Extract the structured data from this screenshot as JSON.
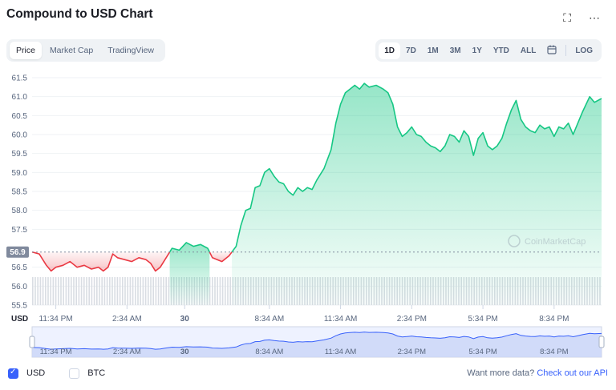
{
  "header": {
    "title": "Compound to USD Chart",
    "fullscreen_icon": "fullscreen-icon",
    "more_icon": "more-horizontal-icon"
  },
  "tabs": [
    {
      "label": "Price",
      "active": true
    },
    {
      "label": "Market Cap",
      "active": false
    },
    {
      "label": "TradingView",
      "active": false
    }
  ],
  "ranges": [
    {
      "label": "1D",
      "active": true
    },
    {
      "label": "7D",
      "active": false
    },
    {
      "label": "1M",
      "active": false
    },
    {
      "label": "3M",
      "active": false
    },
    {
      "label": "1Y",
      "active": false
    },
    {
      "label": "YTD",
      "active": false
    },
    {
      "label": "ALL",
      "active": false
    }
  ],
  "calendar_icon": "calendar-icon",
  "log_label": "LOG",
  "chart_data": {
    "type": "area",
    "currency_label": "USD",
    "watermark": "CoinMarketCap",
    "reference_value": 56.9,
    "reference_label": "56.9",
    "ylim": [
      55.5,
      61.5
    ],
    "yticks": [
      61.5,
      61.0,
      60.5,
      60.0,
      59.5,
      59.0,
      58.5,
      58.0,
      57.5,
      56.5,
      56.0,
      55.5
    ],
    "ytick_labels": [
      "61.5",
      "61.0",
      "60.5",
      "60.0",
      "59.5",
      "59.0",
      "58.5",
      "58.0",
      "57.5",
      "56.5",
      "56.0",
      "55.5"
    ],
    "xlim": [
      0,
      24
    ],
    "xticks": [
      {
        "x": 1.0,
        "label": "11:34 PM"
      },
      {
        "x": 4.0,
        "label": "2:34 AM"
      },
      {
        "x": 6.43,
        "label": "30"
      },
      {
        "x": 10.0,
        "label": "8:34 AM"
      },
      {
        "x": 13.0,
        "label": "11:34 AM"
      },
      {
        "x": 16.0,
        "label": "2:34 PM"
      },
      {
        "x": 19.0,
        "label": "5:34 PM"
      },
      {
        "x": 22.0,
        "label": "8:34 PM"
      }
    ],
    "colors": {
      "up": "#16c784",
      "down": "#ea3943",
      "nav": "#3861fb",
      "volume": "#d9dde3"
    },
    "price": [
      [
        0.0,
        56.9
      ],
      [
        0.3,
        56.85
      ],
      [
        0.6,
        56.55
      ],
      [
        0.8,
        56.4
      ],
      [
        1.0,
        56.5
      ],
      [
        1.3,
        56.55
      ],
      [
        1.6,
        56.65
      ],
      [
        1.9,
        56.5
      ],
      [
        2.2,
        56.55
      ],
      [
        2.5,
        56.45
      ],
      [
        2.8,
        56.5
      ],
      [
        3.0,
        56.4
      ],
      [
        3.2,
        56.5
      ],
      [
        3.4,
        56.85
      ],
      [
        3.6,
        56.75
      ],
      [
        3.9,
        56.7
      ],
      [
        4.2,
        56.65
      ],
      [
        4.5,
        56.75
      ],
      [
        4.8,
        56.7
      ],
      [
        5.0,
        56.6
      ],
      [
        5.2,
        56.4
      ],
      [
        5.4,
        56.5
      ],
      [
        5.6,
        56.7
      ],
      [
        5.9,
        57.0
      ],
      [
        6.2,
        56.95
      ],
      [
        6.5,
        57.15
      ],
      [
        6.8,
        57.05
      ],
      [
        7.1,
        57.1
      ],
      [
        7.4,
        57.0
      ],
      [
        7.6,
        56.75
      ],
      [
        7.8,
        56.7
      ],
      [
        8.0,
        56.65
      ],
      [
        8.3,
        56.8
      ],
      [
        8.6,
        57.05
      ],
      [
        8.8,
        57.6
      ],
      [
        9.0,
        58.0
      ],
      [
        9.2,
        58.05
      ],
      [
        9.4,
        58.6
      ],
      [
        9.6,
        58.65
      ],
      [
        9.8,
        59.0
      ],
      [
        10.0,
        59.1
      ],
      [
        10.2,
        58.9
      ],
      [
        10.4,
        58.75
      ],
      [
        10.6,
        58.7
      ],
      [
        10.8,
        58.5
      ],
      [
        11.0,
        58.4
      ],
      [
        11.2,
        58.6
      ],
      [
        11.4,
        58.5
      ],
      [
        11.6,
        58.6
      ],
      [
        11.8,
        58.55
      ],
      [
        12.0,
        58.8
      ],
      [
        12.3,
        59.1
      ],
      [
        12.6,
        59.6
      ],
      [
        12.8,
        60.3
      ],
      [
        13.0,
        60.8
      ],
      [
        13.2,
        61.1
      ],
      [
        13.4,
        61.2
      ],
      [
        13.6,
        61.3
      ],
      [
        13.8,
        61.2
      ],
      [
        14.0,
        61.35
      ],
      [
        14.2,
        61.25
      ],
      [
        14.5,
        61.3
      ],
      [
        14.8,
        61.2
      ],
      [
        15.0,
        61.1
      ],
      [
        15.2,
        60.8
      ],
      [
        15.4,
        60.2
      ],
      [
        15.6,
        59.95
      ],
      [
        15.8,
        60.05
      ],
      [
        16.0,
        60.2
      ],
      [
        16.2,
        60.0
      ],
      [
        16.4,
        59.95
      ],
      [
        16.6,
        59.8
      ],
      [
        16.8,
        59.7
      ],
      [
        17.0,
        59.65
      ],
      [
        17.2,
        59.55
      ],
      [
        17.4,
        59.7
      ],
      [
        17.6,
        60.0
      ],
      [
        17.8,
        59.95
      ],
      [
        18.0,
        59.8
      ],
      [
        18.2,
        60.1
      ],
      [
        18.4,
        59.95
      ],
      [
        18.6,
        59.45
      ],
      [
        18.8,
        59.9
      ],
      [
        19.0,
        60.05
      ],
      [
        19.2,
        59.7
      ],
      [
        19.4,
        59.6
      ],
      [
        19.6,
        59.7
      ],
      [
        19.8,
        59.9
      ],
      [
        20.0,
        60.3
      ],
      [
        20.2,
        60.65
      ],
      [
        20.4,
        60.9
      ],
      [
        20.6,
        60.4
      ],
      [
        20.8,
        60.2
      ],
      [
        21.0,
        60.1
      ],
      [
        21.2,
        60.05
      ],
      [
        21.4,
        60.25
      ],
      [
        21.6,
        60.15
      ],
      [
        21.8,
        60.2
      ],
      [
        22.0,
        59.95
      ],
      [
        22.2,
        60.2
      ],
      [
        22.4,
        60.15
      ],
      [
        22.6,
        60.3
      ],
      [
        22.8,
        60.0
      ],
      [
        23.0,
        60.3
      ],
      [
        23.2,
        60.6
      ],
      [
        23.5,
        61.0
      ],
      [
        23.7,
        60.85
      ],
      [
        24.0,
        60.95
      ]
    ]
  },
  "footer": {
    "options": [
      {
        "label": "USD",
        "checked": true
      },
      {
        "label": "BTC",
        "checked": false
      }
    ],
    "api_text": "Want more data?",
    "api_link": "Check out our API"
  }
}
